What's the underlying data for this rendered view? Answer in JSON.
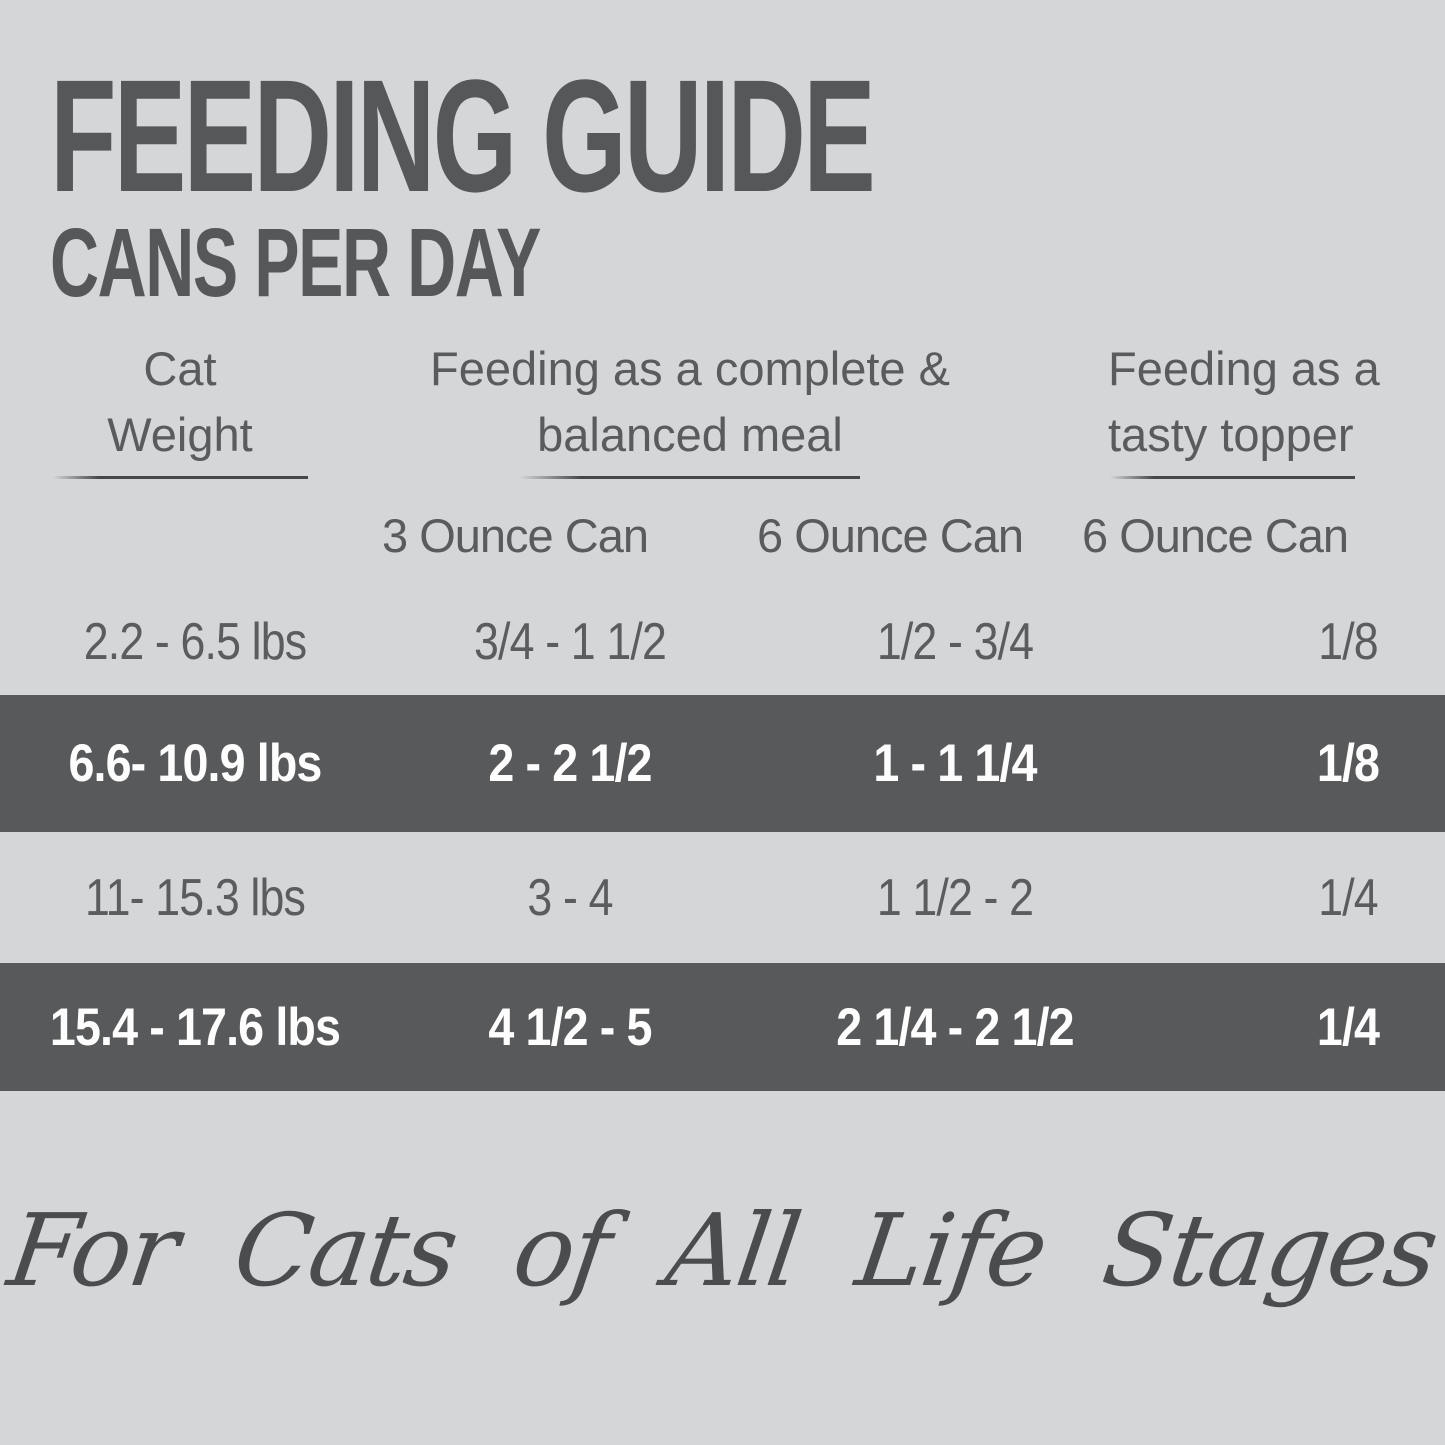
{
  "title": "FEEDING GUIDE",
  "subtitle": "CANS PER DAY",
  "table": {
    "columns": {
      "weight": {
        "line1": "Cat",
        "line2": "Weight"
      },
      "complete_meal": {
        "line1": "Feeding as a complete &",
        "line2": "balanced meal"
      },
      "topper": {
        "line1": "Feeding as a",
        "line2": "tasty topper"
      }
    },
    "subheaders": {
      "can3": "3 Ounce Can",
      "can6": "6 Ounce Can",
      "topper_can6": "6 Ounce Can"
    },
    "rows": [
      {
        "weight": "2.2 - 6.5 lbs",
        "can3": "3/4 - 1 1/2",
        "can6": "1/2 - 3/4",
        "topper": "1/8",
        "highlighted": false
      },
      {
        "weight": "6.6- 10.9 lbs",
        "can3": "2 - 2 1/2",
        "can6": "1 - 1 1/4",
        "topper": "1/8",
        "highlighted": true
      },
      {
        "weight": "11- 15.3 lbs",
        "can3": "3 - 4",
        "can6": "1 1/2 - 2",
        "topper": "1/4",
        "highlighted": false
      },
      {
        "weight": "15.4 - 17.6 lbs",
        "can3": "4 1/2 - 5",
        "can6": "2 1/4 - 2 1/2",
        "topper": "1/4",
        "highlighted": true
      }
    ]
  },
  "footer": {
    "tagline": "For Cats of All Life Stages"
  },
  "colors": {
    "background": "#d5d6d8",
    "text": "#57585a",
    "highlight_band": "#58595b",
    "highlight_text": "#fdfdfd"
  }
}
